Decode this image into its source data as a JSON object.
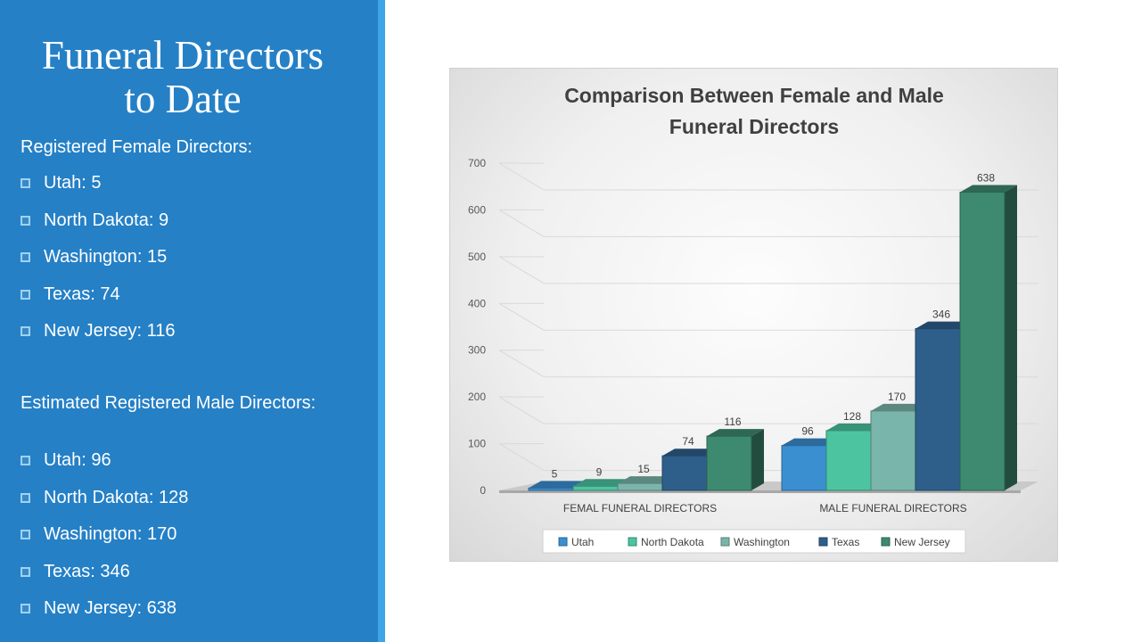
{
  "slide": {
    "title_line1": "Funeral Directors",
    "title_line2": "to Date",
    "female_heading": "Registered Female Directors:",
    "female_items": [
      "Utah: 5",
      "North Dakota: 9",
      "Washington: 15",
      "Texas: 74",
      "New Jersey: 116"
    ],
    "male_heading": "Estimated Registered Male Directors:",
    "male_items": [
      "Utah: 96",
      "North Dakota: 128",
      "Washington: 170",
      "Texas: 346",
      "New Jersey: 638"
    ]
  },
  "colors": {
    "sidebar": "#2580c6",
    "stripe": "#3ea5e6",
    "series": [
      "#3a8fd0",
      "#4cc4a0",
      "#7ab5ab",
      "#2e5f8a",
      "#3d8a70"
    ]
  },
  "chart_data": {
    "type": "bar",
    "title": "Comparison Between Female and Male Funeral Directors",
    "title_line1": "Comparison Between Female and Male",
    "title_line2": "Funeral Directors",
    "categories": [
      "FEMAL FUNERAL DIRECTORS",
      "MALE FUNERAL DIRECTORS"
    ],
    "series": [
      {
        "name": "Utah",
        "values": [
          5,
          96
        ]
      },
      {
        "name": "North Dakota",
        "values": [
          9,
          128
        ]
      },
      {
        "name": "Washington",
        "values": [
          15,
          170
        ]
      },
      {
        "name": "Texas",
        "values": [
          74,
          346
        ]
      },
      {
        "name": "New Jersey",
        "values": [
          116,
          638
        ]
      }
    ],
    "ylim": [
      0,
      700
    ],
    "yticks": [
      0,
      100,
      200,
      300,
      400,
      500,
      600,
      700
    ],
    "grid": true,
    "legend": "bottom",
    "style": "3d-clustered-column"
  }
}
